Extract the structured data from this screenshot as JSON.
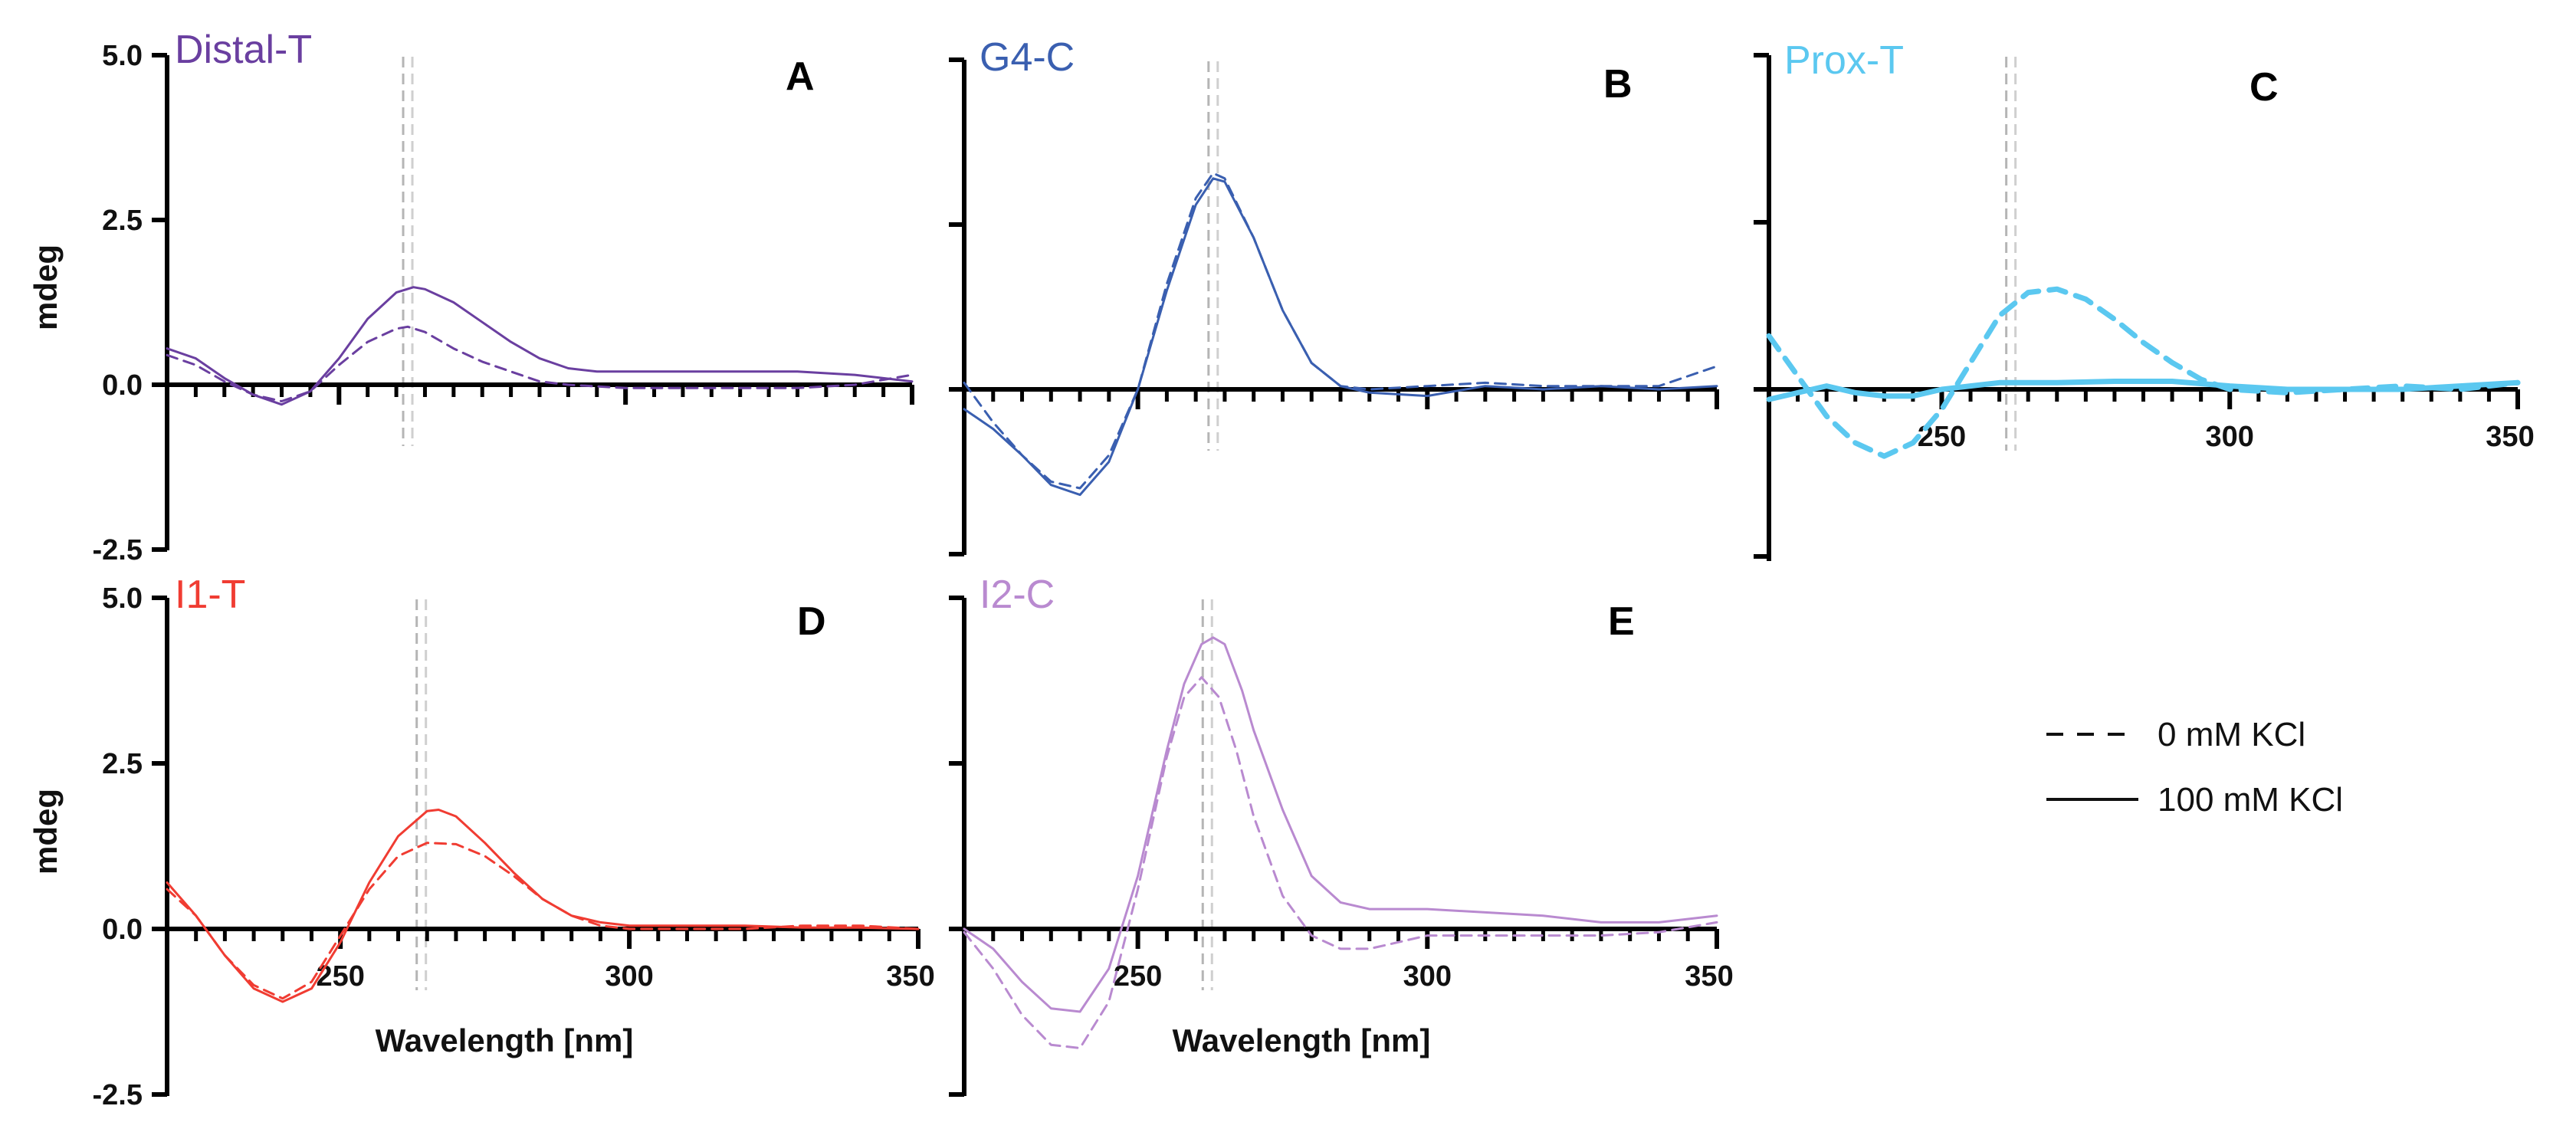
{
  "figure": {
    "legend": [
      {
        "label": "0 mM KCl",
        "style": "dashed"
      },
      {
        "label": "100 mM KCl",
        "style": "solid"
      }
    ]
  },
  "chart_data": [
    {
      "id": "A",
      "type": "line",
      "letter": "A",
      "title": "Distal-T",
      "color": "#6a3fa0",
      "xlim": [
        220,
        350
      ],
      "ylim": [
        -2.5,
        5.0
      ],
      "yticks": [
        "5.0",
        "2.5",
        "0.0",
        "-2.5"
      ],
      "xticks": [],
      "ylabel": "mdeg",
      "xlabel": "",
      "ref_line_x": 262,
      "thick": false,
      "series": [
        {
          "name": "0 mM KCl",
          "style": "dashed",
          "x": [
            220,
            225,
            230,
            235,
            240,
            245,
            250,
            255,
            260,
            262,
            265,
            270,
            275,
            280,
            285,
            290,
            300,
            310,
            320,
            330,
            340,
            350
          ],
          "y": [
            0.45,
            0.3,
            0.05,
            -0.15,
            -0.25,
            -0.1,
            0.3,
            0.65,
            0.85,
            0.88,
            0.8,
            0.55,
            0.35,
            0.2,
            0.05,
            0.0,
            -0.05,
            -0.05,
            -0.05,
            -0.05,
            0.0,
            0.15
          ]
        },
        {
          "name": "100 mM KCl",
          "style": "solid",
          "x": [
            220,
            225,
            230,
            235,
            240,
            245,
            250,
            255,
            260,
            263,
            265,
            270,
            275,
            280,
            285,
            290,
            295,
            300,
            310,
            320,
            330,
            340,
            350
          ],
          "y": [
            0.55,
            0.4,
            0.1,
            -0.15,
            -0.3,
            -0.1,
            0.4,
            1.0,
            1.4,
            1.48,
            1.45,
            1.25,
            0.95,
            0.65,
            0.4,
            0.25,
            0.2,
            0.2,
            0.2,
            0.2,
            0.2,
            0.15,
            0.05
          ]
        }
      ]
    },
    {
      "id": "B",
      "type": "line",
      "letter": "B",
      "title": "G4-C",
      "color": "#3a5fb0",
      "xlim": [
        220,
        350
      ],
      "ylim": [
        -2.5,
        5.0
      ],
      "yticks": [],
      "xticks": [],
      "ylabel": "",
      "xlabel": "",
      "ref_line_x": 263,
      "thick": false,
      "series": [
        {
          "name": "0 mM KCl",
          "style": "dashed",
          "x": [
            220,
            225,
            230,
            235,
            240,
            245,
            250,
            255,
            260,
            263,
            265,
            270,
            275,
            280,
            285,
            290,
            300,
            310,
            320,
            330,
            340,
            350
          ],
          "y": [
            0.1,
            -0.5,
            -1.0,
            -1.4,
            -1.5,
            -1.0,
            0.0,
            1.6,
            2.9,
            3.28,
            3.2,
            2.3,
            1.2,
            0.4,
            0.05,
            0.0,
            0.05,
            0.1,
            0.05,
            0.05,
            0.05,
            0.35
          ]
        },
        {
          "name": "100 mM KCl",
          "style": "solid",
          "x": [
            220,
            225,
            230,
            235,
            240,
            245,
            250,
            255,
            260,
            263,
            265,
            270,
            275,
            280,
            285,
            290,
            300,
            310,
            320,
            330,
            340,
            350
          ],
          "y": [
            -0.3,
            -0.6,
            -1.0,
            -1.45,
            -1.6,
            -1.1,
            0.0,
            1.5,
            2.8,
            3.2,
            3.15,
            2.3,
            1.2,
            0.4,
            0.05,
            -0.05,
            -0.1,
            0.05,
            0.0,
            0.05,
            0.0,
            0.05
          ]
        }
      ]
    },
    {
      "id": "C",
      "type": "line",
      "letter": "C",
      "title": "Prox-T",
      "color": "#5bc8f0",
      "xlim": [
        220,
        350
      ],
      "ylim": [
        -2.5,
        5.0
      ],
      "yticks": [],
      "xticks": [
        "250",
        "300",
        "350"
      ],
      "ylabel": "",
      "xlabel": "",
      "ref_line_x": 262,
      "thick": true,
      "series": [
        {
          "name": "0 mM KCl",
          "style": "dashed",
          "x": [
            220,
            225,
            230,
            235,
            240,
            245,
            250,
            255,
            260,
            265,
            270,
            275,
            280,
            285,
            290,
            295,
            300,
            310,
            320,
            330,
            340,
            350
          ],
          "y": [
            0.8,
            0.2,
            -0.4,
            -0.8,
            -1.0,
            -0.8,
            -0.3,
            0.4,
            1.1,
            1.45,
            1.5,
            1.35,
            1.05,
            0.7,
            0.4,
            0.15,
            0.0,
            -0.05,
            0.0,
            0.05,
            0.0,
            0.1
          ]
        },
        {
          "name": "100 mM KCl",
          "style": "solid",
          "x": [
            220,
            225,
            230,
            235,
            240,
            245,
            250,
            255,
            260,
            270,
            280,
            290,
            300,
            310,
            320,
            330,
            340,
            350
          ],
          "y": [
            -0.15,
            -0.05,
            0.05,
            -0.05,
            -0.1,
            -0.1,
            0.0,
            0.05,
            0.1,
            0.1,
            0.12,
            0.12,
            0.05,
            0.0,
            0.0,
            0.0,
            0.05,
            0.1
          ]
        }
      ]
    },
    {
      "id": "D",
      "type": "line",
      "letter": "D",
      "title": "I1-T",
      "color": "#f03c32",
      "xlim": [
        220,
        350
      ],
      "ylim": [
        -2.5,
        5.0
      ],
      "yticks": [
        "5.0",
        "2.5",
        "0.0",
        "-2.5"
      ],
      "xticks": [
        "250",
        "300",
        "350"
      ],
      "ylabel": "mdeg",
      "xlabel": "Wavelength [nm]",
      "ref_line_x": 264,
      "thick": false,
      "series": [
        {
          "name": "0 mM KCl",
          "style": "dashed",
          "x": [
            220,
            225,
            230,
            235,
            240,
            245,
            250,
            255,
            260,
            265,
            270,
            275,
            280,
            285,
            290,
            295,
            300,
            310,
            320,
            330,
            340,
            350
          ],
          "y": [
            0.6,
            0.2,
            -0.4,
            -0.85,
            -1.05,
            -0.8,
            -0.1,
            0.6,
            1.1,
            1.3,
            1.28,
            1.1,
            0.8,
            0.45,
            0.2,
            0.05,
            0.0,
            0.0,
            0.0,
            0.05,
            0.05,
            0.0
          ]
        },
        {
          "name": "100 mM KCl",
          "style": "solid",
          "x": [
            220,
            225,
            230,
            235,
            240,
            245,
            250,
            255,
            260,
            265,
            267,
            270,
            275,
            280,
            285,
            290,
            295,
            300,
            310,
            320,
            330,
            340,
            350
          ],
          "y": [
            0.7,
            0.2,
            -0.4,
            -0.9,
            -1.1,
            -0.9,
            -0.2,
            0.7,
            1.4,
            1.78,
            1.8,
            1.7,
            1.3,
            0.85,
            0.45,
            0.2,
            0.1,
            0.05,
            0.05,
            0.05,
            0.02,
            0.02,
            0.0
          ]
        }
      ]
    },
    {
      "id": "E",
      "type": "line",
      "letter": "E",
      "title": "I2-C",
      "color": "#b98ad0",
      "xlim": [
        220,
        350
      ],
      "ylim": [
        -2.5,
        5.0
      ],
      "yticks": [],
      "xticks": [
        "250",
        "300",
        "350"
      ],
      "ylabel": "",
      "xlabel": "Wavelength [nm]",
      "ref_line_x": 262,
      "thick": false,
      "series": [
        {
          "name": "0 mM KCl",
          "style": "dashed",
          "x": [
            220,
            225,
            230,
            235,
            240,
            245,
            250,
            255,
            258,
            261,
            264,
            267,
            270,
            275,
            280,
            285,
            290,
            295,
            300,
            310,
            320,
            330,
            340,
            350
          ],
          "y": [
            -0.05,
            -0.6,
            -1.3,
            -1.75,
            -1.8,
            -1.1,
            0.6,
            2.6,
            3.5,
            3.8,
            3.5,
            2.7,
            1.7,
            0.5,
            -0.1,
            -0.3,
            -0.3,
            -0.2,
            -0.1,
            -0.1,
            -0.1,
            -0.1,
            -0.05,
            0.1
          ]
        },
        {
          "name": "100 mM KCl",
          "style": "solid",
          "x": [
            220,
            225,
            230,
            235,
            240,
            245,
            250,
            255,
            258,
            261,
            263,
            265,
            268,
            270,
            275,
            280,
            285,
            290,
            295,
            300,
            310,
            320,
            330,
            340,
            350
          ],
          "y": [
            0.0,
            -0.3,
            -0.8,
            -1.2,
            -1.25,
            -0.6,
            0.8,
            2.7,
            3.7,
            4.3,
            4.4,
            4.3,
            3.6,
            3.0,
            1.8,
            0.8,
            0.4,
            0.3,
            0.3,
            0.3,
            0.25,
            0.2,
            0.1,
            0.1,
            0.2
          ]
        }
      ]
    }
  ]
}
